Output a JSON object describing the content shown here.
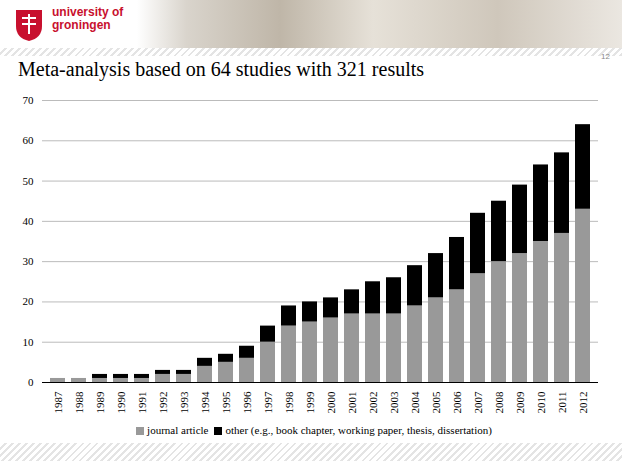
{
  "header": {
    "logo_text": "university of groningen",
    "page_number": "12"
  },
  "chart_data": {
    "type": "bar",
    "stacked": true,
    "title": "Meta-analysis based on 64 studies with 321 results",
    "categories": [
      "1987",
      "1988",
      "1989",
      "1990",
      "1991",
      "1992",
      "1993",
      "1994",
      "1995",
      "1996",
      "1997",
      "1998",
      "1999",
      "2000",
      "2001",
      "2002",
      "2003",
      "2004",
      "2005",
      "2006",
      "2007",
      "2008",
      "2009",
      "2010",
      "2011",
      "2012"
    ],
    "series": [
      {
        "name": "journal article",
        "color": "#999999",
        "values": [
          1,
          1,
          1,
          1,
          1,
          2,
          2,
          4,
          5,
          6,
          10,
          14,
          15,
          16,
          17,
          17,
          17,
          19,
          21,
          23,
          27,
          30,
          32,
          35,
          37,
          43
        ]
      },
      {
        "name": "other (e.g., book chapter, working paper, thesis, dissertation)",
        "color": "#000000",
        "values": [
          0,
          0,
          1,
          1,
          1,
          1,
          1,
          2,
          2,
          3,
          4,
          5,
          5,
          5,
          6,
          8,
          9,
          10,
          11,
          13,
          15,
          15,
          17,
          19,
          20,
          21
        ]
      }
    ],
    "ylim": [
      0,
      70
    ],
    "yticks": [
      0,
      10,
      20,
      30,
      40,
      50,
      60,
      70
    ],
    "grid": true,
    "legend": "bottom"
  }
}
